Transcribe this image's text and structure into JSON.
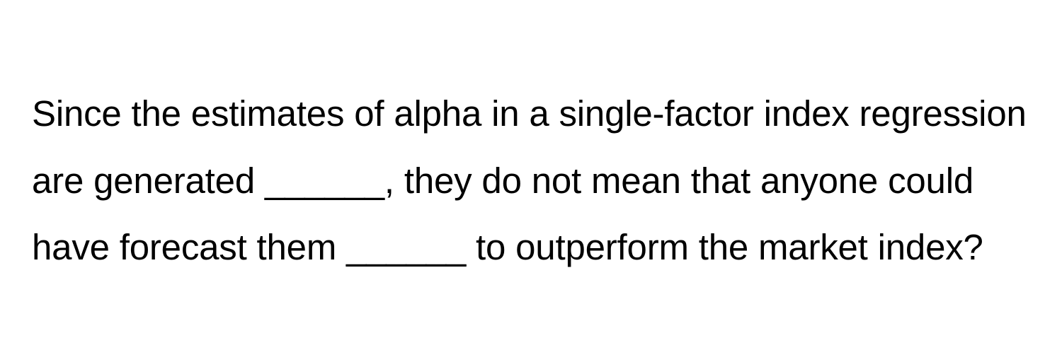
{
  "question": {
    "text": "Since the estimates of alpha in a single-factor index regression are generated ______, they do not mean that anyone could have forecast them ______ to outperform the market index?",
    "font_size": 51,
    "line_height": 1.85,
    "text_color": "#000000",
    "background_color": "#ffffff",
    "font_weight": 400
  }
}
